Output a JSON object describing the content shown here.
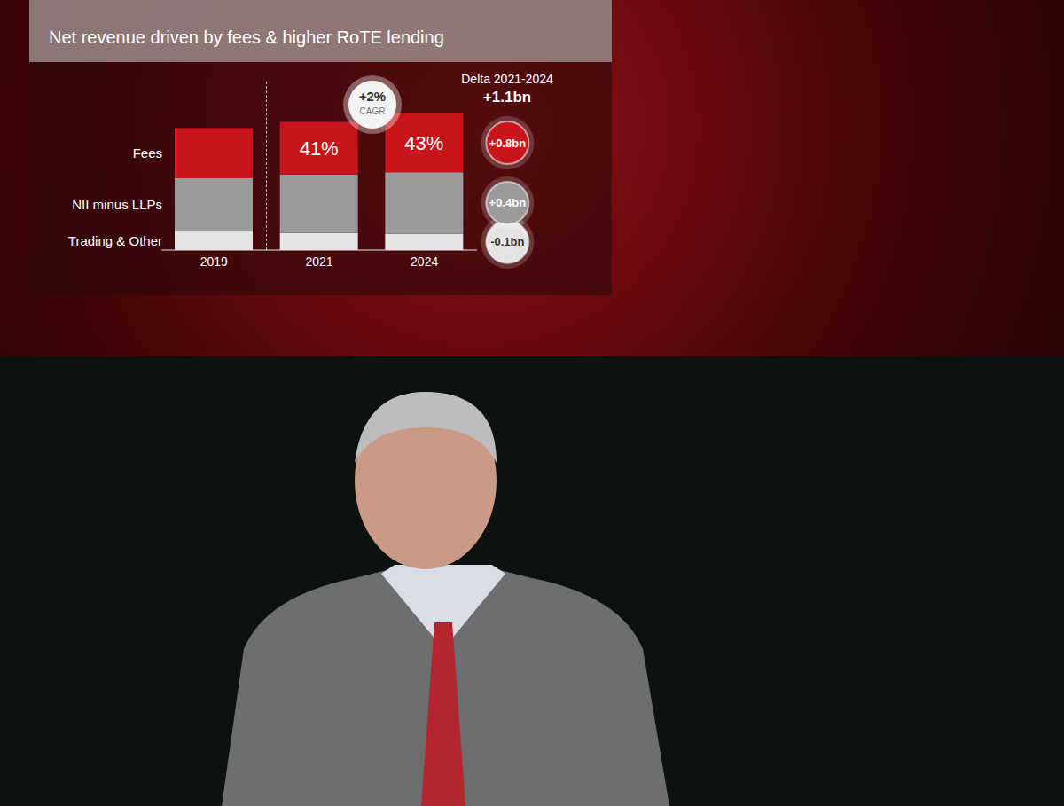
{
  "chart_data": {
    "type": "bar",
    "stacked": true,
    "title": "Net revenue driven by fees & higher RoTE lending",
    "categories": [
      "2019",
      "2021",
      "2024"
    ],
    "series": [
      {
        "name": "Fees",
        "color": "#c8141a",
        "values": [
          6.5,
          6.8,
          7.6
        ],
        "share_labels": [
          null,
          "41%",
          "43%"
        ],
        "delta": {
          "value": 0.8,
          "label": "+0.8bn"
        }
      },
      {
        "name": "NII minus LLPs",
        "color": "#9b9b9b",
        "values": [
          6.8,
          7.6,
          8.0
        ],
        "delta": {
          "value": 0.4,
          "label": "+0.4bn"
        }
      },
      {
        "name": "Trading & Other",
        "color": "#e4e4e4",
        "values": [
          2.5,
          2.2,
          2.1
        ],
        "delta": {
          "value": -0.1,
          "label": "-0.1bn"
        }
      }
    ],
    "ylim": [
      0,
      20
    ],
    "tick_labels": "x",
    "cagr": {
      "value": 2,
      "label": "+2%",
      "text": "CAGR"
    },
    "delta_title": "Delta 2021-2024",
    "delta_total": {
      "value": 1.1,
      "label": "+1.1bn"
    }
  }
}
